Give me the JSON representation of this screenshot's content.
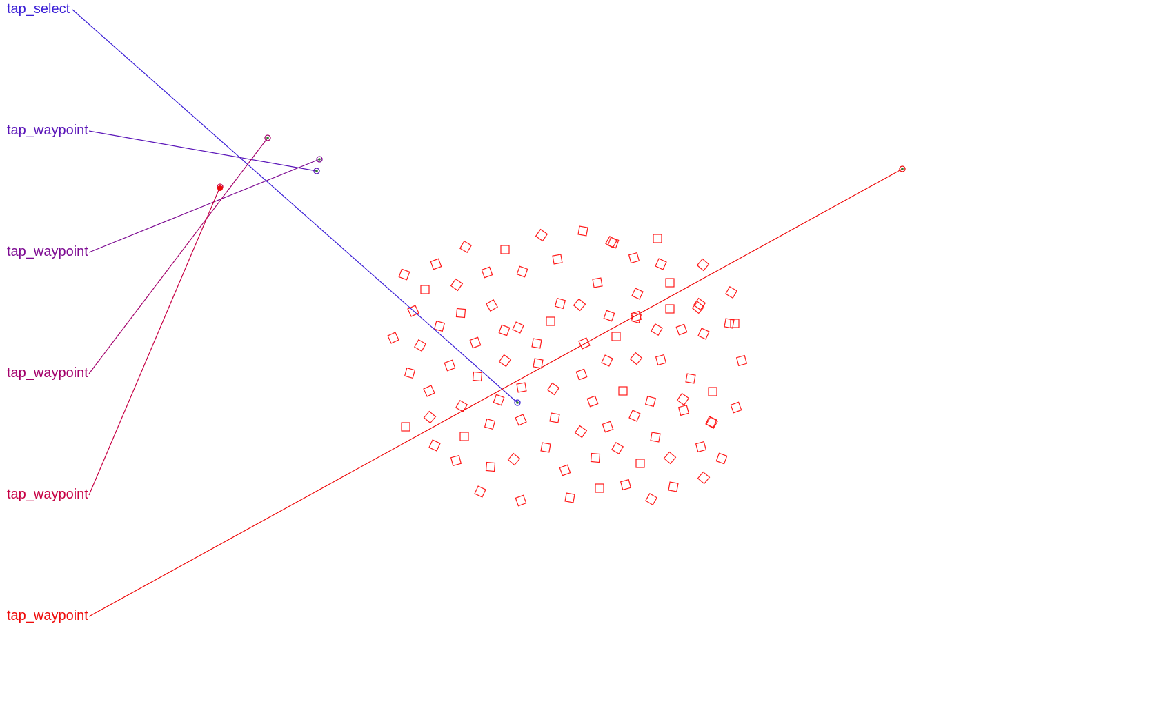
{
  "actions": [
    {
      "label": "tap_select",
      "color": "#3b1fd6"
    },
    {
      "label": "tap_waypoint",
      "color": "#5a15b8"
    },
    {
      "label": "tap_waypoint",
      "color": "#7d0b92"
    },
    {
      "label": "tap_waypoint",
      "color": "#a3006b"
    },
    {
      "label": "tap_waypoint",
      "color": "#c70044"
    },
    {
      "label": "tap_waypoint",
      "color": "#ee0a0a"
    }
  ],
  "target_color": "#ff1a1a",
  "marker_dot_color": "#2f7d2f"
}
